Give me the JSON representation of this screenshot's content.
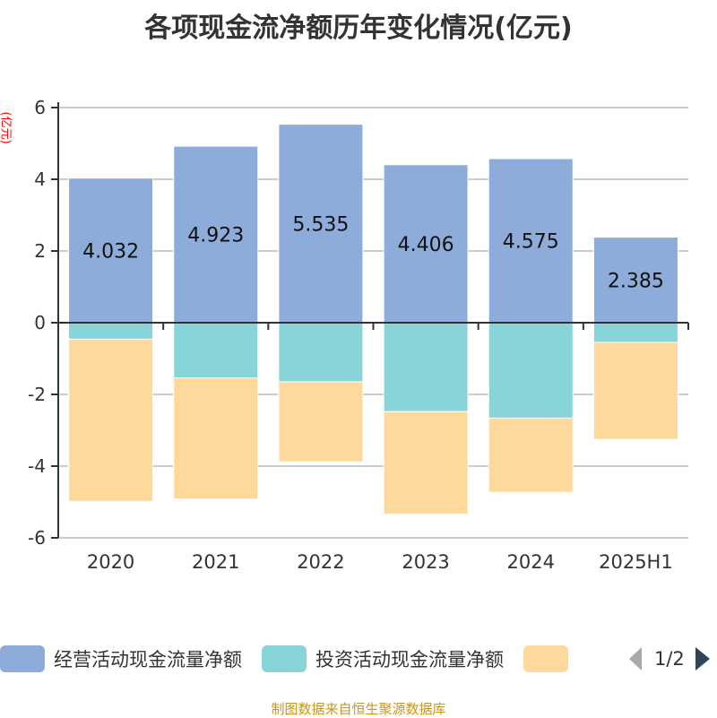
{
  "title": "各项现金流净额历年变化情况(亿元)",
  "source": "制图数据来自恒生聚源数据库",
  "pager": "1/2",
  "chart_data": {
    "type": "bar",
    "stacked": true,
    "title": "各项现金流净额历年变化情况(亿元)",
    "ylabel": "(亿元)",
    "ylim": [
      -6,
      6
    ],
    "yticks": [
      6,
      4,
      2,
      0,
      -2,
      -4,
      -6
    ],
    "grid": true,
    "legend": "bottom",
    "categories": [
      "2020",
      "2021",
      "2022",
      "2023",
      "2024",
      "2025H1"
    ],
    "series": [
      {
        "name": "经营活动现金流量净额",
        "color": "#8eacd9",
        "values": [
          4.032,
          4.923,
          5.535,
          4.406,
          4.575,
          2.385
        ],
        "labels": [
          "4.032",
          "4.923",
          "5.535",
          "4.406",
          "4.575",
          "2.385"
        ]
      },
      {
        "name": "投资活动现金流量净额",
        "color": "#87d5d9",
        "values": [
          -0.46,
          -1.54,
          -1.65,
          -2.48,
          -2.66,
          -0.55
        ]
      },
      {
        "name": "",
        "color": "#fed99b",
        "values": [
          -4.52,
          -3.38,
          -2.23,
          -2.86,
          -2.07,
          -2.7
        ]
      }
    ]
  }
}
